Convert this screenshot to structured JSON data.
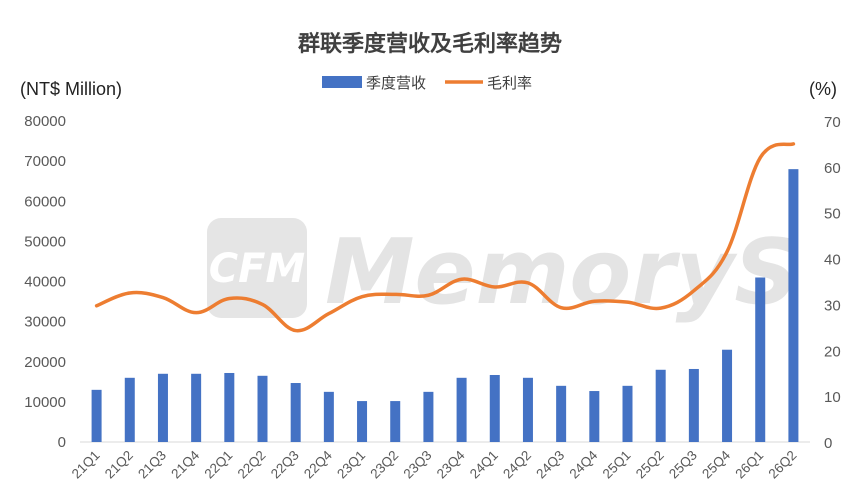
{
  "watermark": {
    "logo": "CFM",
    "name": "MemoryS"
  },
  "chart_data": {
    "type": "bar+line",
    "title": "群联季度营收及毛利率趋势",
    "y_left_label": "(NT$ Million)",
    "y_right_label": "(%)",
    "y_left_range": [
      0,
      80000
    ],
    "y_left_ticks": [
      0,
      10000,
      20000,
      30000,
      40000,
      50000,
      60000,
      70000,
      80000
    ],
    "y_right_range": [
      0,
      70
    ],
    "y_right_ticks": [
      0,
      10,
      20,
      30,
      40,
      50,
      60,
      70
    ],
    "categories": [
      "21Q1",
      "21Q2",
      "21Q3",
      "21Q4",
      "22Q1",
      "22Q2",
      "22Q3",
      "22Q4",
      "23Q1",
      "23Q2",
      "23Q3",
      "23Q4",
      "24Q1",
      "24Q2",
      "24Q3",
      "24Q4",
      "25Q1",
      "25Q2",
      "25Q3",
      "25Q4",
      "26Q1",
      "26Q2"
    ],
    "series": [
      {
        "name": "季度营收",
        "type": "bar",
        "axis": "left",
        "color": "#4472C4",
        "values": [
          13000,
          16000,
          17000,
          17000,
          17200,
          16500,
          14700,
          12500,
          10200,
          10200,
          12500,
          16000,
          16700,
          16000,
          14000,
          12700,
          14000,
          18000,
          18200,
          23000,
          41000,
          68000
        ]
      },
      {
        "name": "毛利率",
        "type": "line",
        "axis": "right",
        "color": "#ED7D31",
        "values": [
          29.7,
          32.5,
          31.5,
          28.2,
          31.3,
          30.0,
          24.3,
          28.0,
          31.7,
          32.2,
          32.0,
          35.5,
          33.8,
          34.7,
          29.3,
          30.7,
          30.5,
          29.2,
          33.0,
          41.5,
          62.0,
          65.0
        ]
      }
    ],
    "legend_position": "top-center",
    "grid": false
  }
}
